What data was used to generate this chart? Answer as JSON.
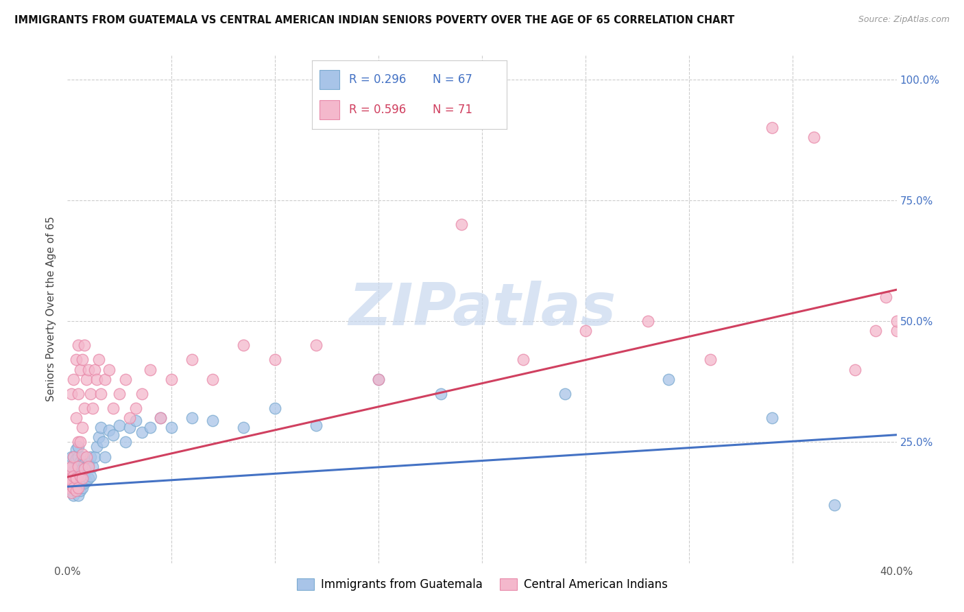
{
  "title": "IMMIGRANTS FROM GUATEMALA VS CENTRAL AMERICAN INDIAN SENIORS POVERTY OVER THE AGE OF 65 CORRELATION CHART",
  "source": "Source: ZipAtlas.com",
  "ylabel": "Seniors Poverty Over the Age of 65",
  "legend_blue_R": "R = 0.296",
  "legend_blue_N": "N = 67",
  "legend_pink_R": "R = 0.596",
  "legend_pink_N": "N = 71",
  "legend_blue_label": "Immigrants from Guatemala",
  "legend_pink_label": "Central American Indians",
  "blue_face_color": "#a8c4e8",
  "pink_face_color": "#f4b8cc",
  "blue_edge_color": "#7aaad0",
  "pink_edge_color": "#e888a8",
  "blue_line_color": "#4472c4",
  "pink_line_color": "#d04060",
  "watermark_color": "#c8d8ee",
  "background_color": "#ffffff",
  "grid_color": "#cccccc",
  "blue_scatter_x": [
    0.0005,
    0.001,
    0.001,
    0.002,
    0.002,
    0.002,
    0.002,
    0.003,
    0.003,
    0.003,
    0.003,
    0.004,
    0.004,
    0.004,
    0.004,
    0.004,
    0.005,
    0.005,
    0.005,
    0.005,
    0.005,
    0.005,
    0.006,
    0.006,
    0.006,
    0.006,
    0.007,
    0.007,
    0.007,
    0.007,
    0.008,
    0.008,
    0.008,
    0.009,
    0.009,
    0.01,
    0.01,
    0.011,
    0.011,
    0.012,
    0.013,
    0.014,
    0.015,
    0.016,
    0.017,
    0.018,
    0.02,
    0.022,
    0.025,
    0.028,
    0.03,
    0.033,
    0.036,
    0.04,
    0.045,
    0.05,
    0.06,
    0.07,
    0.085,
    0.1,
    0.12,
    0.15,
    0.18,
    0.24,
    0.29,
    0.34,
    0.37
  ],
  "blue_scatter_y": [
    0.175,
    0.165,
    0.195,
    0.15,
    0.18,
    0.2,
    0.22,
    0.14,
    0.17,
    0.19,
    0.22,
    0.155,
    0.175,
    0.195,
    0.215,
    0.235,
    0.14,
    0.16,
    0.18,
    0.2,
    0.22,
    0.24,
    0.15,
    0.17,
    0.19,
    0.21,
    0.155,
    0.175,
    0.195,
    0.22,
    0.165,
    0.185,
    0.205,
    0.17,
    0.2,
    0.175,
    0.205,
    0.18,
    0.22,
    0.2,
    0.22,
    0.24,
    0.26,
    0.28,
    0.25,
    0.22,
    0.275,
    0.265,
    0.285,
    0.25,
    0.28,
    0.295,
    0.27,
    0.28,
    0.3,
    0.28,
    0.3,
    0.295,
    0.28,
    0.32,
    0.285,
    0.38,
    0.35,
    0.35,
    0.38,
    0.3,
    0.12
  ],
  "pink_scatter_x": [
    0.0003,
    0.0005,
    0.001,
    0.001,
    0.001,
    0.002,
    0.002,
    0.002,
    0.002,
    0.003,
    0.003,
    0.003,
    0.003,
    0.004,
    0.004,
    0.004,
    0.004,
    0.005,
    0.005,
    0.005,
    0.005,
    0.005,
    0.006,
    0.006,
    0.006,
    0.007,
    0.007,
    0.007,
    0.007,
    0.008,
    0.008,
    0.008,
    0.009,
    0.009,
    0.01,
    0.01,
    0.011,
    0.012,
    0.013,
    0.014,
    0.015,
    0.016,
    0.018,
    0.02,
    0.022,
    0.025,
    0.028,
    0.03,
    0.033,
    0.036,
    0.04,
    0.045,
    0.05,
    0.06,
    0.07,
    0.085,
    0.1,
    0.12,
    0.15,
    0.19,
    0.22,
    0.25,
    0.28,
    0.31,
    0.34,
    0.36,
    0.38,
    0.39,
    0.395,
    0.4,
    0.4
  ],
  "pink_scatter_y": [
    0.165,
    0.18,
    0.155,
    0.175,
    0.195,
    0.145,
    0.17,
    0.2,
    0.35,
    0.155,
    0.18,
    0.22,
    0.38,
    0.15,
    0.175,
    0.3,
    0.42,
    0.155,
    0.2,
    0.25,
    0.35,
    0.45,
    0.18,
    0.25,
    0.4,
    0.175,
    0.225,
    0.28,
    0.42,
    0.195,
    0.32,
    0.45,
    0.22,
    0.38,
    0.2,
    0.4,
    0.35,
    0.32,
    0.4,
    0.38,
    0.42,
    0.35,
    0.38,
    0.4,
    0.32,
    0.35,
    0.38,
    0.3,
    0.32,
    0.35,
    0.4,
    0.3,
    0.38,
    0.42,
    0.38,
    0.45,
    0.42,
    0.45,
    0.38,
    0.7,
    0.42,
    0.48,
    0.5,
    0.42,
    0.9,
    0.88,
    0.4,
    0.48,
    0.55,
    0.48,
    0.5
  ],
  "xlim": [
    0.0,
    0.4
  ],
  "ylim": [
    0.0,
    1.05
  ],
  "blue_trend": [
    0.0,
    0.158,
    0.4,
    0.265
  ],
  "pink_trend": [
    0.0,
    0.178,
    0.4,
    0.565
  ],
  "xtick_positions": [
    0.0,
    0.05,
    0.1,
    0.15,
    0.2,
    0.25,
    0.3,
    0.35,
    0.4
  ],
  "ytick_positions": [
    0.0,
    0.25,
    0.5,
    0.75,
    1.0
  ],
  "right_ytick_labels": [
    "25.0%",
    "50.0%",
    "75.0%",
    "100.0%"
  ]
}
